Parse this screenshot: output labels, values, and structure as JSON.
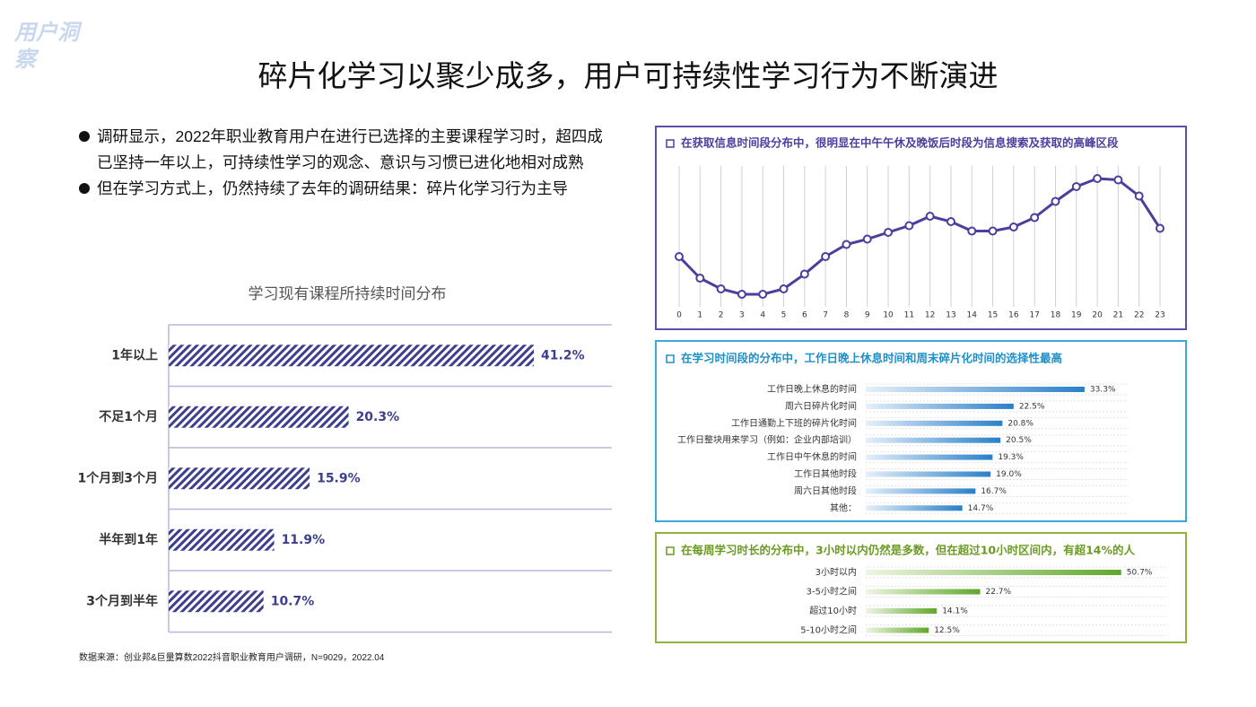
{
  "header": {
    "logo": "用户洞察",
    "title": "碎片化学习以聚少成多，用户可持续性学习行为不断演进"
  },
  "bullets": [
    "调研显示，2022年职业教育用户在进行已选择的主要课程学习时，超四成已坚持一年以上，可持续性学习的观念、意识与习惯已进化地相对成熟",
    "但在学习方式上，仍然持续了去年的调研结果：碎片化学习行为主导"
  ],
  "source": "数据来源：创业邦&巨量算数2022抖音职业教育用户调研，N=9029，2022.04",
  "chart_data": [
    {
      "type": "hbar",
      "title": "学习现有课程所持续时间分布",
      "categories": [
        "1年以上",
        "不足1个月",
        "1个月到3个月",
        "半年到1年",
        "3个月到半年"
      ],
      "values": [
        41.2,
        20.3,
        15.9,
        11.9,
        10.7
      ],
      "value_labels": [
        "41.2%",
        "20.3%",
        "15.9%",
        "11.9%",
        "10.7%"
      ],
      "xlim": [
        0,
        50
      ],
      "color": "#3d3f8c"
    },
    {
      "type": "line",
      "title": "在获取信息时间段分布中，很明显在中午午休及晚饭后时段为信息搜索及获取的高峰区段",
      "x": [
        0,
        1,
        2,
        3,
        4,
        5,
        6,
        7,
        8,
        9,
        10,
        11,
        12,
        13,
        14,
        15,
        16,
        17,
        18,
        19,
        20,
        21,
        22,
        23
      ],
      "values": [
        36,
        20,
        12,
        8,
        8,
        12,
        23,
        36,
        45,
        49,
        54,
        59,
        66,
        62,
        55,
        55,
        58,
        65,
        77,
        88,
        94,
        93,
        81,
        57
      ],
      "xlim": [
        0,
        23
      ],
      "xticks": [
        0,
        1,
        2,
        3,
        4,
        5,
        6,
        7,
        8,
        9,
        10,
        11,
        12,
        13,
        14,
        15,
        16,
        17,
        18,
        19,
        20,
        21,
        22,
        23
      ],
      "ylim": [
        0,
        100
      ],
      "color": "#4b3f9e",
      "grid": true
    },
    {
      "type": "hbar",
      "title": "在学习时间段的分布中，工作日晚上休息时间和周末碎片化时间的选择性最高",
      "categories": [
        "工作日晚上休息的时间",
        "周六日碎片化时间",
        "工作日通勤上下班的碎片化时间",
        "工作日整块用来学习（例如：企业内部培训）",
        "工作日中午休息的时间",
        "工作日其他时段",
        "周六日其他时段",
        "其他："
      ],
      "values": [
        33.3,
        22.5,
        20.8,
        20.5,
        19.3,
        19.0,
        16.7,
        14.7
      ],
      "value_labels": [
        "33.3%",
        "22.5%",
        "20.8%",
        "20.5%",
        "19.3%",
        "19.0%",
        "16.7%",
        "14.7%"
      ],
      "xlim": [
        0,
        40
      ],
      "color": "#2a7fc9"
    },
    {
      "type": "hbar",
      "title": "在每周学习时长的分布中，3小时以内仍然是多数，但在超过10小时区间内，有超14%的人",
      "categories": [
        "3小时以内",
        "3-5小时之间",
        "超过10小时",
        "5-10小时之间"
      ],
      "values": [
        50.7,
        22.7,
        14.1,
        12.5
      ],
      "value_labels": [
        "50.7%",
        "22.7%",
        "14.1%",
        "12.5%"
      ],
      "xlim": [
        0,
        60
      ],
      "color": "#5fa82a"
    }
  ]
}
